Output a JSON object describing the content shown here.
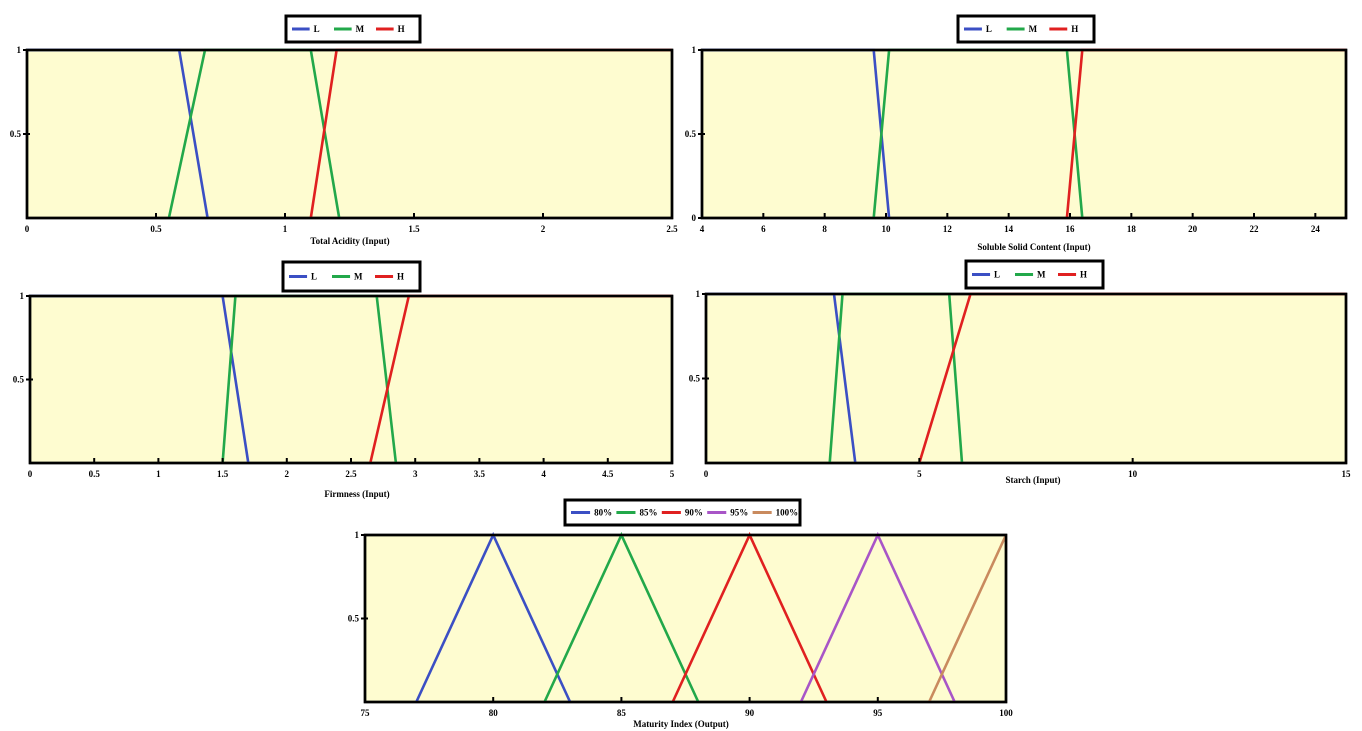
{
  "chart_data": [
    {
      "type": "line",
      "xlabel": "Total Acidity (Input)",
      "ylabel": "",
      "xlim": [
        0,
        2.5
      ],
      "ylim": [
        0,
        1
      ],
      "x_ticks": [
        "0",
        "0.5",
        "1",
        "1.5",
        "2",
        "2.5"
      ],
      "y_ticks": [
        "1",
        "0.5"
      ],
      "legend_position": "top-center",
      "series": [
        {
          "name": "L",
          "color": "#3b4fc4",
          "x": [
            0,
            0.59,
            0.7
          ],
          "y": [
            1,
            1,
            0
          ]
        },
        {
          "name": "M",
          "color": "#22a84a",
          "x": [
            0.55,
            0.69,
            1.1,
            1.21
          ],
          "y": [
            0,
            1,
            1,
            0
          ]
        },
        {
          "name": "H",
          "color": "#e02020",
          "x": [
            1.1,
            1.2,
            2.5
          ],
          "y": [
            0,
            1,
            1
          ]
        }
      ]
    },
    {
      "type": "line",
      "xlabel": "Soluble Solid Content (Input)",
      "ylabel": "",
      "xlim": [
        4,
        25
      ],
      "ylim": [
        0,
        1
      ],
      "x_ticks": [
        "4",
        "6",
        "8",
        "10",
        "12",
        "14",
        "16",
        "18",
        "20",
        "22",
        "24"
      ],
      "y_ticks": [
        "1",
        "0.5",
        "0"
      ],
      "legend_position": "top-center",
      "series": [
        {
          "name": "L",
          "color": "#3b4fc4",
          "x": [
            4,
            9.6,
            10.1
          ],
          "y": [
            1,
            1,
            0
          ]
        },
        {
          "name": "M",
          "color": "#22a84a",
          "x": [
            9.6,
            10.1,
            15.9,
            16.4
          ],
          "y": [
            0,
            1,
            1,
            0
          ]
        },
        {
          "name": "H",
          "color": "#e02020",
          "x": [
            15.9,
            16.4,
            25
          ],
          "y": [
            0,
            1,
            1
          ]
        }
      ]
    },
    {
      "type": "line",
      "xlabel": "Firmness (Input)",
      "ylabel": "",
      "xlim": [
        0,
        5
      ],
      "ylim": [
        0,
        1
      ],
      "x_ticks": [
        "0",
        "0.5",
        "1",
        "1.5",
        "2",
        "2.5",
        "3",
        "3.5",
        "4",
        "4.5",
        "5"
      ],
      "y_ticks": [
        "1",
        "0.5"
      ],
      "legend_position": "top-center",
      "series": [
        {
          "name": "L",
          "color": "#3b4fc4",
          "x": [
            0,
            1.5,
            1.7
          ],
          "y": [
            1,
            1,
            0
          ]
        },
        {
          "name": "M",
          "color": "#22a84a",
          "x": [
            1.5,
            1.6,
            2.7,
            2.85
          ],
          "y": [
            0,
            1,
            1,
            0
          ]
        },
        {
          "name": "H",
          "color": "#e02020",
          "x": [
            2.65,
            2.95,
            5
          ],
          "y": [
            0,
            1,
            1
          ]
        }
      ]
    },
    {
      "type": "line",
      "xlabel": "Starch (Input)",
      "ylabel": "",
      "xlim": [
        0,
        15
      ],
      "ylim": [
        0,
        1
      ],
      "x_ticks": [
        "0",
        "5",
        "10",
        "15"
      ],
      "y_ticks": [
        "1",
        "0.5"
      ],
      "legend_position": "top-center",
      "series": [
        {
          "name": "L",
          "color": "#3b4fc4",
          "x": [
            0,
            3,
            3.5
          ],
          "y": [
            1,
            1,
            0
          ]
        },
        {
          "name": "M",
          "color": "#22a84a",
          "x": [
            2.9,
            3.2,
            5.7,
            6
          ],
          "y": [
            0,
            1,
            1,
            0
          ]
        },
        {
          "name": "H",
          "color": "#e02020",
          "x": [
            5,
            6.2,
            15
          ],
          "y": [
            0,
            1,
            1
          ]
        }
      ]
    },
    {
      "type": "line",
      "xlabel": "Maturity Index (Output)",
      "ylabel": "",
      "xlim": [
        75,
        100
      ],
      "ylim": [
        0,
        1
      ],
      "x_ticks": [
        "75",
        "80",
        "85",
        "90",
        "95",
        "100"
      ],
      "y_ticks": [
        "1",
        "0.5"
      ],
      "legend_position": "top-center",
      "series": [
        {
          "name": "80%",
          "color": "#3b4fc4",
          "x": [
            77,
            80,
            83
          ],
          "y": [
            0,
            1,
            0
          ]
        },
        {
          "name": "85%",
          "color": "#22a84a",
          "x": [
            82,
            85,
            88
          ],
          "y": [
            0,
            1,
            0
          ]
        },
        {
          "name": "90%",
          "color": "#e02020",
          "x": [
            87,
            90,
            93
          ],
          "y": [
            0,
            1,
            0
          ]
        },
        {
          "name": "95%",
          "color": "#a855c7",
          "x": [
            92,
            95,
            98
          ],
          "y": [
            0,
            1,
            0
          ]
        },
        {
          "name": "100%",
          "color": "#c98a5e",
          "x": [
            97,
            100
          ],
          "y": [
            0,
            1
          ]
        }
      ]
    }
  ]
}
